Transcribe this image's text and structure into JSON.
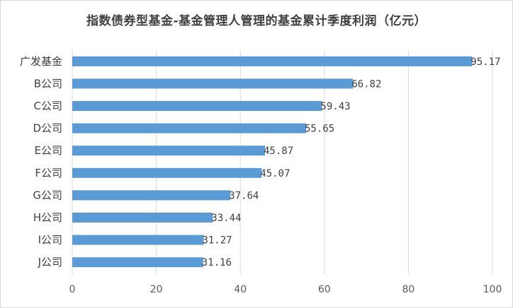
{
  "chart_data": {
    "type": "bar",
    "orientation": "horizontal",
    "title": "指数债券型基金-基金管理人管理的基金累计季度利润（亿元）",
    "categories": [
      "广发基金",
      "B公司",
      "C公司",
      "D公司",
      "E公司",
      "F公司",
      "G公司",
      "H公司",
      "I公司",
      "J公司"
    ],
    "values": [
      95.17,
      66.82,
      59.43,
      55.65,
      45.87,
      45.07,
      37.64,
      33.44,
      31.27,
      31.16
    ],
    "value_labels": [
      "95.17",
      "66.82",
      "59.43",
      "55.65",
      "45.87",
      "45.07",
      "37.64",
      "33.44",
      "31.27",
      "31.16"
    ],
    "x_ticks": [
      "0",
      "20",
      "40",
      "60",
      "80",
      "100"
    ],
    "xlim": [
      0,
      100
    ],
    "grid": "vertical",
    "bar_color": "#5b9bd5",
    "gridline_color": "#d9d9d9"
  }
}
